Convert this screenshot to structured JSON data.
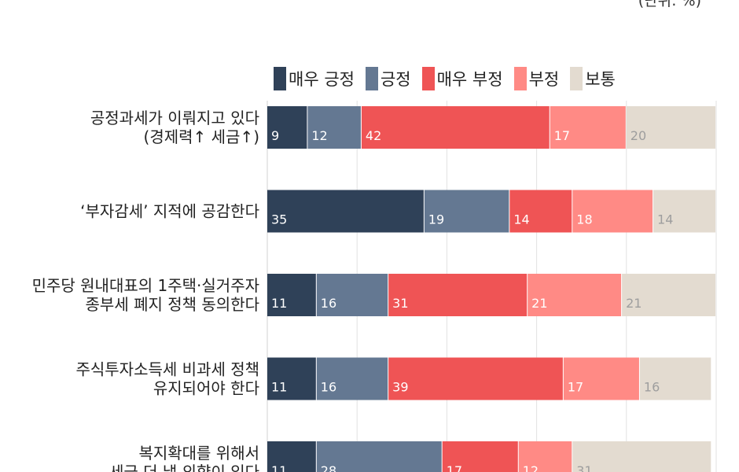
{
  "unit_text": "(단위: %)",
  "colors": {
    "매우 긍정": "#2f4158",
    "긍정": "#647892",
    "매우 부정": "#ef5455",
    "부정": "#ff8a85",
    "보통": "#e3dbd0",
    "label_light": "#ffffff",
    "label_muted": "#9e9e9e",
    "grid": "#e2e2e2"
  },
  "chart_data": {
    "type": "bar",
    "orientation": "horizontal",
    "stacked": true,
    "legend_position": "top",
    "xlim": [
      0,
      100
    ],
    "grid": true,
    "categories": [
      [
        "공정과세가 이뤄지고 있다",
        "(경제력↑ 세금↑)"
      ],
      [
        "‘부자감세’ 지적에 공감한다"
      ],
      [
        "민주당 원내대표의 1주택·실거주자",
        "종부세 폐지 정책 동의한다"
      ],
      [
        "주식투자소득세 비과세 정책",
        "유지되어야 한다"
      ],
      [
        "복지확대를 위해서",
        "세금 더 낼 의향이 있다"
      ]
    ],
    "series": [
      {
        "name": "매우 긍정",
        "values": [
          9,
          35,
          11,
          11,
          11
        ]
      },
      {
        "name": "긍정",
        "values": [
          12,
          19,
          16,
          16,
          28
        ]
      },
      {
        "name": "매우 부정",
        "values": [
          42,
          14,
          31,
          39,
          17
        ]
      },
      {
        "name": "부정",
        "values": [
          17,
          18,
          21,
          17,
          12
        ]
      },
      {
        "name": "보통",
        "values": [
          20,
          14,
          21,
          16,
          31
        ]
      }
    ]
  }
}
